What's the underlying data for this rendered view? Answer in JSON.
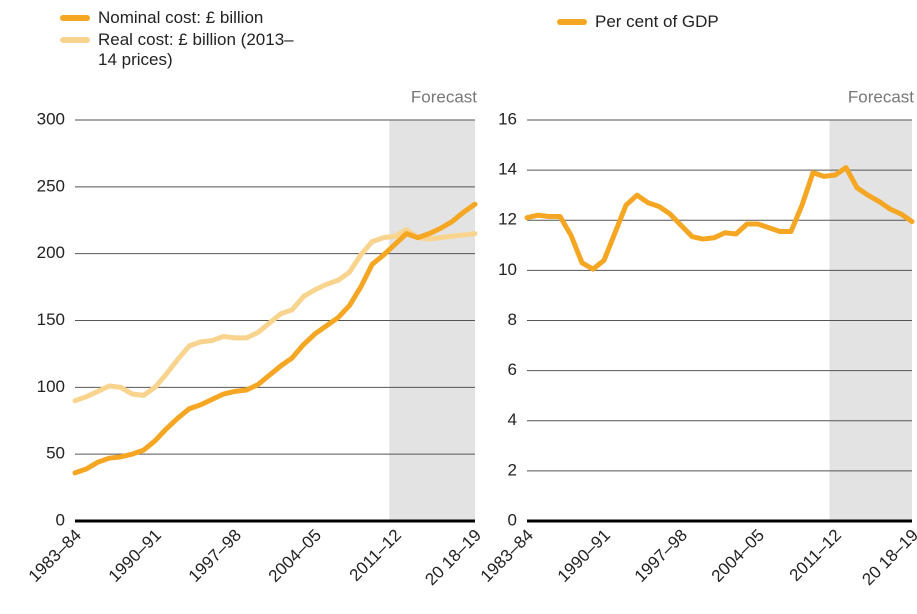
{
  "chart_data": [
    {
      "type": "line",
      "categories": [
        "1983–84",
        null,
        null,
        null,
        null,
        null,
        null,
        "1990–91",
        null,
        null,
        null,
        null,
        null,
        null,
        "1997–98",
        null,
        null,
        null,
        null,
        null,
        null,
        "2004–05",
        null,
        null,
        null,
        null,
        null,
        null,
        "2011–12",
        null,
        null,
        null,
        null,
        null,
        null,
        "20 18–19"
      ],
      "series": [
        {
          "name": "Nominal cost: £ billion",
          "color": "#f5a623",
          "values": [
            36,
            39,
            44,
            47,
            48,
            50,
            53,
            60,
            69,
            77,
            84,
            87,
            91,
            95,
            97,
            98,
            102,
            109,
            116,
            122,
            132,
            140,
            146,
            152,
            161,
            175,
            192,
            199,
            207,
            215,
            212,
            215,
            219,
            224,
            231,
            237
          ]
        },
        {
          "name": "Real cost: £ billion (2013–14 prices)",
          "color": "#f9d48e",
          "values": [
            90,
            93,
            97,
            101,
            100,
            95,
            94,
            100,
            110,
            121,
            131,
            134,
            135,
            138,
            137,
            137,
            141,
            148,
            155,
            158,
            168,
            173,
            177,
            180,
            186,
            199,
            209,
            212,
            213,
            218,
            212,
            211,
            212,
            213,
            214,
            215
          ]
        }
      ],
      "ylim": [
        0,
        300
      ],
      "yticks": [
        0,
        50,
        100,
        150,
        200,
        250,
        300
      ],
      "grid": true,
      "shaded_region": {
        "label": "Forecast",
        "from": 27.5
      }
    },
    {
      "type": "line",
      "categories": [
        "1983–84",
        null,
        null,
        null,
        null,
        null,
        null,
        "1990–91",
        null,
        null,
        null,
        null,
        null,
        null,
        "1997–98",
        null,
        null,
        null,
        null,
        null,
        null,
        "2004–05",
        null,
        null,
        null,
        null,
        null,
        null,
        "2011–12",
        null,
        null,
        null,
        null,
        null,
        null,
        "20 18–19"
      ],
      "series": [
        {
          "name": "Per cent of GDP",
          "color": "#f5a623",
          "values": [
            12.1,
            12.2,
            12.15,
            12.15,
            11.4,
            10.3,
            10.05,
            10.4,
            11.5,
            12.6,
            13.0,
            12.7,
            12.55,
            12.25,
            11.8,
            11.35,
            11.25,
            11.3,
            11.5,
            11.45,
            11.85,
            11.85,
            11.7,
            11.55,
            11.55,
            12.6,
            13.9,
            13.75,
            13.8,
            14.1,
            13.3,
            13.0,
            12.75,
            12.45,
            12.25,
            11.95
          ]
        }
      ],
      "ylim": [
        0,
        16
      ],
      "yticks": [
        0,
        2,
        4,
        6,
        8,
        10,
        12,
        14,
        16
      ],
      "grid": true,
      "shaded_region": {
        "label": "Forecast",
        "from": 27.5
      }
    }
  ]
}
